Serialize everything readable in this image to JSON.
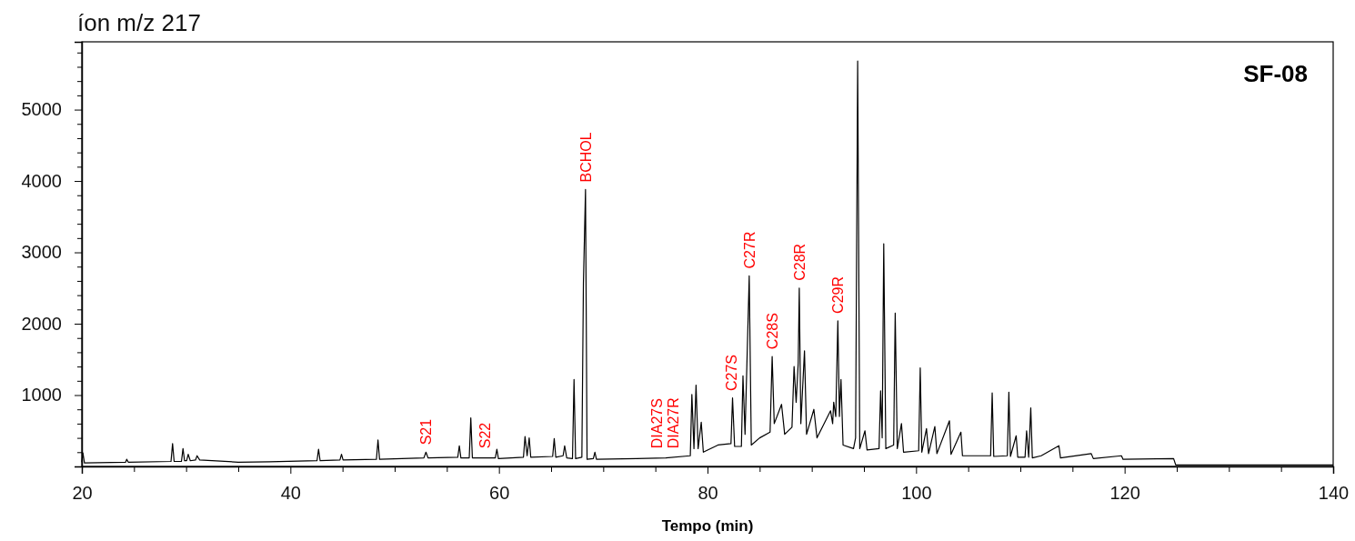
{
  "chart_data": {
    "type": "line",
    "title": "íon m/z 217",
    "xlabel": "Tempo (min)",
    "xlim": [
      20,
      140
    ],
    "xticks": [
      20,
      {
        "value": 25,
        "label": null
      },
      {
        "value": 30,
        "label": null
      },
      {
        "value": 35,
        "label": null
      },
      40,
      {
        "value": 45,
        "label": null
      },
      {
        "value": 50,
        "label": null
      },
      {
        "value": 55,
        "label": null
      },
      60,
      {
        "value": 65,
        "label": null
      },
      {
        "value": 70,
        "label": null
      },
      {
        "value": 75,
        "label": null
      },
      80,
      {
        "value": 85,
        "label": null
      },
      {
        "value": 90,
        "label": null
      },
      {
        "value": 95,
        "label": null
      },
      100,
      {
        "value": 105,
        "label": null
      },
      {
        "value": 110,
        "label": null
      },
      {
        "value": 115,
        "label": null
      },
      120,
      {
        "value": 125,
        "label": null
      },
      {
        "value": 130,
        "label": null
      },
      {
        "value": 135,
        "label": null
      },
      140
    ],
    "ylim": [
      0,
      5950
    ],
    "yticks": [
      {
        "value": 200,
        "label": null
      },
      {
        "value": 400,
        "label": null
      },
      {
        "value": 600,
        "label": null
      },
      {
        "value": 800,
        "label": null
      },
      1000,
      {
        "value": 1200,
        "label": null
      },
      {
        "value": 1400,
        "label": null
      },
      {
        "value": 1600,
        "label": null
      },
      {
        "value": 1800,
        "label": null
      },
      2000,
      {
        "value": 2200,
        "label": null
      },
      {
        "value": 2400,
        "label": null
      },
      {
        "value": 2600,
        "label": null
      },
      {
        "value": 2800,
        "label": null
      },
      3000,
      {
        "value": 3200,
        "label": null
      },
      {
        "value": 3400,
        "label": null
      },
      {
        "value": 3600,
        "label": null
      },
      {
        "value": 3800,
        "label": null
      },
      4000,
      {
        "value": 4200,
        "label": null
      },
      {
        "value": 4400,
        "label": null
      },
      {
        "value": 4600,
        "label": null
      },
      {
        "value": 4800,
        "label": null
      },
      5000,
      {
        "value": 5200,
        "label": null
      },
      {
        "value": 5400,
        "label": null
      },
      {
        "value": 5600,
        "label": null
      },
      {
        "value": 5800,
        "label": null
      }
    ],
    "grid": false,
    "marker": "none",
    "line_style": "solid",
    "series": [
      {
        "color": "#000000",
        "x": [
          20,
          20.1,
          20.25,
          24.2,
          24.3,
          24.45,
          28.55,
          28.7,
          28.85,
          29.55,
          29.7,
          29.85,
          30.05,
          30.2,
          30.4,
          30.9,
          31.05,
          31.3,
          35,
          38,
          42.55,
          42.7,
          42.85,
          44.75,
          44.9,
          45.05,
          48.25,
          48.4,
          48.55,
          52.8,
          53,
          53.2,
          56.05,
          56.2,
          56.35,
          57.15,
          57.3,
          57.45,
          59.65,
          59.8,
          59.95,
          62.35,
          62.5,
          62.7,
          62.9,
          63.05,
          65.15,
          65.3,
          65.45,
          66.15,
          66.3,
          66.5,
          67.05,
          67.2,
          67.35,
          67.95,
          68.1,
          68.3,
          68.45,
          69.05,
          69.2,
          69.35,
          73.2,
          76,
          78.35,
          78.5,
          78.7,
          78.9,
          79.1,
          79.4,
          79.6,
          81,
          82.25,
          82.4,
          82.6,
          83.25,
          83.4,
          83.6,
          84.0,
          84.2,
          85,
          86.0,
          86.2,
          86.4,
          87.1,
          87.4,
          88.1,
          88.3,
          88.5,
          88.7,
          88.8,
          88.95,
          89.3,
          89.5,
          90.2,
          90.5,
          91.8,
          92.0,
          92.1,
          92.3,
          92.5,
          92.65,
          92.8,
          93.0,
          94.0,
          94.2,
          94.4,
          94.6,
          95.1,
          95.3,
          96.45,
          96.6,
          96.75,
          96.9,
          97.1,
          97.85,
          98.0,
          98.2,
          98.6,
          98.8,
          100.25,
          100.4,
          100.55,
          101.0,
          101.2,
          101.8,
          102,
          103.2,
          103.35,
          104.3,
          104.45,
          107.15,
          107.3,
          107.45,
          108.75,
          108.9,
          109.05,
          109.6,
          109.75,
          110.45,
          110.6,
          110.8,
          111.0,
          111.15,
          112.0,
          113.7,
          113.85,
          116.8,
          117,
          119.7,
          119.85,
          124.7,
          124.9,
          140
        ],
        "values": [
          60,
          190,
          50,
          60,
          100,
          60,
          70,
          320,
          70,
          70,
          250,
          80,
          80,
          170,
          80,
          90,
          150,
          90,
          60,
          65,
          80,
          240,
          80,
          90,
          170,
          90,
          100,
          370,
          100,
          120,
          200,
          120,
          130,
          290,
          120,
          120,
          680,
          120,
          120,
          240,
          110,
          130,
          420,
          150,
          400,
          130,
          140,
          390,
          130,
          150,
          290,
          120,
          110,
          1220,
          110,
          130,
          2570,
          3880,
          100,
          110,
          200,
          100,
          110,
          120,
          150,
          1010,
          250,
          1140,
          250,
          620,
          200,
          300,
          320,
          960,
          280,
          280,
          1270,
          450,
          2670,
          300,
          400,
          480,
          1540,
          600,
          870,
          450,
          550,
          1400,
          900,
          1450,
          2500,
          600,
          1620,
          450,
          800,
          400,
          780,
          600,
          900,
          700,
          2040,
          700,
          1220,
          300,
          250,
          400,
          5680,
          250,
          500,
          230,
          250,
          1060,
          400,
          3120,
          250,
          300,
          2150,
          250,
          600,
          200,
          220,
          1380,
          200,
          530,
          180,
          560,
          180,
          640,
          170,
          480,
          150,
          150,
          1030,
          140,
          150,
          1040,
          140,
          430,
          130,
          130,
          500,
          130,
          820,
          120,
          150,
          290,
          120,
          180,
          110,
          150,
          100,
          110,
          20,
          20
        ]
      }
    ],
    "annotations": [
      {
        "text": "S21",
        "x": 53,
        "y": 200
      },
      {
        "text": "S22",
        "x": 58.6,
        "y": 150
      },
      {
        "text": "BCHOL",
        "x": 68.3,
        "y": 3880
      },
      {
        "text": "DIA27S",
        "x": 75.1,
        "y": 150
      },
      {
        "text": "DIA27R",
        "x": 76.7,
        "y": 150
      },
      {
        "text": "C27S",
        "x": 82.3,
        "y": 955
      },
      {
        "text": "C27R",
        "x": 84.0,
        "y": 2670
      },
      {
        "text": "C28S",
        "x": 86.2,
        "y": 1540
      },
      {
        "text": "C28R",
        "x": 88.8,
        "y": 2500
      },
      {
        "text": "C29R",
        "x": 92.5,
        "y": 2040
      },
      "SF-08"
    ]
  }
}
